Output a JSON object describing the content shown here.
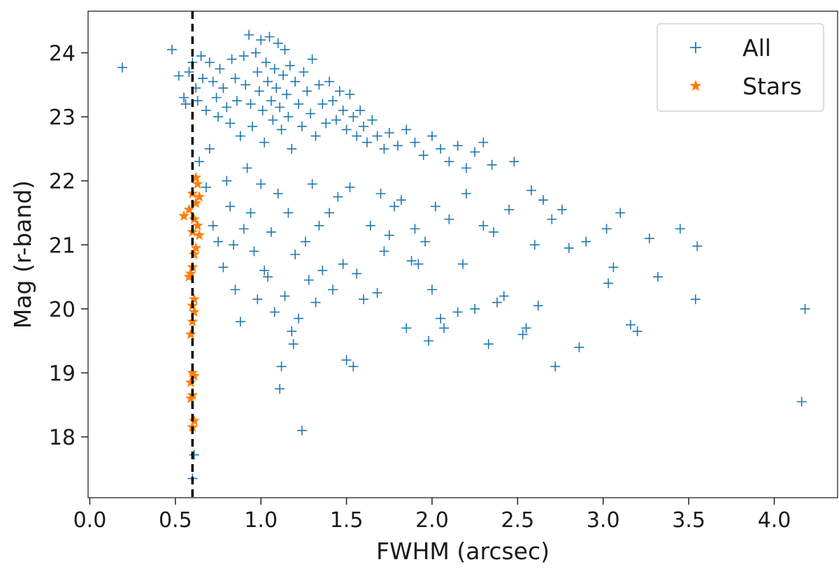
{
  "chart_data": {
    "type": "scatter",
    "title": "",
    "xlabel": "FWHM (arcsec)",
    "ylabel": "Mag (r-band)",
    "xlim": [
      -0.01,
      4.37
    ],
    "ylim": [
      17.05,
      24.65
    ],
    "x_ticks": [
      0.0,
      0.5,
      1.0,
      1.5,
      2.0,
      2.5,
      3.0,
      3.5,
      4.0
    ],
    "x_tick_labels": [
      "0.0",
      "0.5",
      "1.0",
      "1.5",
      "2.0",
      "2.5",
      "3.0",
      "3.5",
      "4.0"
    ],
    "y_ticks": [
      18,
      19,
      20,
      21,
      22,
      23,
      24
    ],
    "y_tick_labels": [
      "18",
      "19",
      "20",
      "21",
      "22",
      "23",
      "24"
    ],
    "grid": false,
    "legend_position": "top-right",
    "reference_line": {
      "x": 0.6,
      "style": "dashed",
      "color": "#000000"
    },
    "series": [
      {
        "name": "All",
        "marker": "plus",
        "color": "#1f77b4",
        "points": [
          [
            0.19,
            23.77
          ],
          [
            0.48,
            24.05
          ],
          [
            0.52,
            23.64
          ],
          [
            0.55,
            23.3
          ],
          [
            0.56,
            23.2
          ],
          [
            0.58,
            23.7
          ],
          [
            0.6,
            23.85
          ],
          [
            0.62,
            23.45
          ],
          [
            0.63,
            23.25
          ],
          [
            0.65,
            23.95
          ],
          [
            0.66,
            23.6
          ],
          [
            0.68,
            23.1
          ],
          [
            0.7,
            23.85
          ],
          [
            0.72,
            23.55
          ],
          [
            0.74,
            23.3
          ],
          [
            0.75,
            23.0
          ],
          [
            0.76,
            23.75
          ],
          [
            0.78,
            23.45
          ],
          [
            0.8,
            23.15
          ],
          [
            0.82,
            22.9
          ],
          [
            0.83,
            23.9
          ],
          [
            0.85,
            23.6
          ],
          [
            0.86,
            23.25
          ],
          [
            0.88,
            22.7
          ],
          [
            0.9,
            23.95
          ],
          [
            0.91,
            23.5
          ],
          [
            0.93,
            24.28
          ],
          [
            0.94,
            23.2
          ],
          [
            0.95,
            22.85
          ],
          [
            0.97,
            24.0
          ],
          [
            0.98,
            23.7
          ],
          [
            0.99,
            23.4
          ],
          [
            1.0,
            24.2
          ],
          [
            1.01,
            23.1
          ],
          [
            1.02,
            22.6
          ],
          [
            1.03,
            23.85
          ],
          [
            1.04,
            23.55
          ],
          [
            1.05,
            24.25
          ],
          [
            1.06,
            23.25
          ],
          [
            1.07,
            22.95
          ],
          [
            1.08,
            23.75
          ],
          [
            1.09,
            23.45
          ],
          [
            1.1,
            24.15
          ],
          [
            1.11,
            23.15
          ],
          [
            1.12,
            22.8
          ],
          [
            1.13,
            23.65
          ],
          [
            1.14,
            24.05
          ],
          [
            1.15,
            23.35
          ],
          [
            1.16,
            23.0
          ],
          [
            1.17,
            23.8
          ],
          [
            1.18,
            22.5
          ],
          [
            1.2,
            23.55
          ],
          [
            1.22,
            23.2
          ],
          [
            1.24,
            22.85
          ],
          [
            1.25,
            23.7
          ],
          [
            1.27,
            23.4
          ],
          [
            1.29,
            23.05
          ],
          [
            1.3,
            23.9
          ],
          [
            1.32,
            22.7
          ],
          [
            1.34,
            23.5
          ],
          [
            1.36,
            23.2
          ],
          [
            1.38,
            22.9
          ],
          [
            1.4,
            23.55
          ],
          [
            1.42,
            23.25
          ],
          [
            1.44,
            22.95
          ],
          [
            1.46,
            23.4
          ],
          [
            1.48,
            23.1
          ],
          [
            1.5,
            22.8
          ],
          [
            1.52,
            23.35
          ],
          [
            1.54,
            23.0
          ],
          [
            1.56,
            22.7
          ],
          [
            1.58,
            23.1
          ],
          [
            1.6,
            22.85
          ],
          [
            1.62,
            22.6
          ],
          [
            1.65,
            22.95
          ],
          [
            1.68,
            22.7
          ],
          [
            1.72,
            22.5
          ],
          [
            1.75,
            22.75
          ],
          [
            1.8,
            22.55
          ],
          [
            1.85,
            22.8
          ],
          [
            1.9,
            22.6
          ],
          [
            1.95,
            22.4
          ],
          [
            2.0,
            22.7
          ],
          [
            2.05,
            22.5
          ],
          [
            2.1,
            22.3
          ],
          [
            2.15,
            22.55
          ],
          [
            2.2,
            22.2
          ],
          [
            2.25,
            22.45
          ],
          [
            2.3,
            22.6
          ],
          [
            2.35,
            22.25
          ],
          [
            2.48,
            22.3
          ],
          [
            0.64,
            22.3
          ],
          [
            0.68,
            21.9
          ],
          [
            0.7,
            22.5
          ],
          [
            0.72,
            21.3
          ],
          [
            0.75,
            21.05
          ],
          [
            0.78,
            20.65
          ],
          [
            0.8,
            22.0
          ],
          [
            0.82,
            21.6
          ],
          [
            0.84,
            21.0
          ],
          [
            0.85,
            20.3
          ],
          [
            0.88,
            19.8
          ],
          [
            0.9,
            21.25
          ],
          [
            0.92,
            22.2
          ],
          [
            0.94,
            21.5
          ],
          [
            0.96,
            20.9
          ],
          [
            0.98,
            20.15
          ],
          [
            1.0,
            21.95
          ],
          [
            1.02,
            20.6
          ],
          [
            1.04,
            20.5
          ],
          [
            1.06,
            21.2
          ],
          [
            1.08,
            19.95
          ],
          [
            1.1,
            21.8
          ],
          [
            1.11,
            18.75
          ],
          [
            1.12,
            19.1
          ],
          [
            1.14,
            20.2
          ],
          [
            1.16,
            21.5
          ],
          [
            1.18,
            19.65
          ],
          [
            1.19,
            19.45
          ],
          [
            1.2,
            20.85
          ],
          [
            1.22,
            19.85
          ],
          [
            1.24,
            18.1
          ],
          [
            1.26,
            21.05
          ],
          [
            1.28,
            20.45
          ],
          [
            1.3,
            21.95
          ],
          [
            1.32,
            20.1
          ],
          [
            1.34,
            21.3
          ],
          [
            1.36,
            20.6
          ],
          [
            1.4,
            21.5
          ],
          [
            1.42,
            20.3
          ],
          [
            1.45,
            21.75
          ],
          [
            1.48,
            20.7
          ],
          [
            1.5,
            19.2
          ],
          [
            1.52,
            21.9
          ],
          [
            1.54,
            19.1
          ],
          [
            1.56,
            20.55
          ],
          [
            1.6,
            20.15
          ],
          [
            1.64,
            21.3
          ],
          [
            1.68,
            20.25
          ],
          [
            1.7,
            21.8
          ],
          [
            1.72,
            20.9
          ],
          [
            1.75,
            21.15
          ],
          [
            1.78,
            21.6
          ],
          [
            1.82,
            21.7
          ],
          [
            1.85,
            19.7
          ],
          [
            1.88,
            20.75
          ],
          [
            1.9,
            21.25
          ],
          [
            1.92,
            20.7
          ],
          [
            1.96,
            21.05
          ],
          [
            1.98,
            19.5
          ],
          [
            2.0,
            20.3
          ],
          [
            2.02,
            21.6
          ],
          [
            2.05,
            19.85
          ],
          [
            2.07,
            19.7
          ],
          [
            2.1,
            21.4
          ],
          [
            2.15,
            19.95
          ],
          [
            2.18,
            20.7
          ],
          [
            2.2,
            21.8
          ],
          [
            2.25,
            20.0
          ],
          [
            2.3,
            21.3
          ],
          [
            2.33,
            19.45
          ],
          [
            2.36,
            21.2
          ],
          [
            2.38,
            20.1
          ],
          [
            2.42,
            20.2
          ],
          [
            2.45,
            21.55
          ],
          [
            2.53,
            19.6
          ],
          [
            2.55,
            19.7
          ],
          [
            2.58,
            21.85
          ],
          [
            2.6,
            21.0
          ],
          [
            2.62,
            20.05
          ],
          [
            2.65,
            21.7
          ],
          [
            2.7,
            21.4
          ],
          [
            2.72,
            19.1
          ],
          [
            2.76,
            21.55
          ],
          [
            2.8,
            20.95
          ],
          [
            2.86,
            19.4
          ],
          [
            2.9,
            21.05
          ],
          [
            3.02,
            21.25
          ],
          [
            3.03,
            20.4
          ],
          [
            3.06,
            20.65
          ],
          [
            3.1,
            21.5
          ],
          [
            3.16,
            19.75
          ],
          [
            3.2,
            19.65
          ],
          [
            3.27,
            21.1
          ],
          [
            3.32,
            20.5
          ],
          [
            3.45,
            21.25
          ],
          [
            3.54,
            20.15
          ],
          [
            3.55,
            20.98
          ],
          [
            4.16,
            18.55
          ],
          [
            4.18,
            20.0
          ],
          [
            0.6,
            17.35
          ],
          [
            0.61,
            17.72
          ]
        ]
      },
      {
        "name": "Stars",
        "marker": "star",
        "color": "#ff7f0e",
        "points": [
          [
            0.62,
            22.05
          ],
          [
            0.63,
            21.95
          ],
          [
            0.6,
            21.8
          ],
          [
            0.64,
            21.75
          ],
          [
            0.62,
            21.65
          ],
          [
            0.58,
            21.55
          ],
          [
            0.55,
            21.45
          ],
          [
            0.61,
            21.4
          ],
          [
            0.63,
            21.3
          ],
          [
            0.6,
            21.2
          ],
          [
            0.64,
            21.15
          ],
          [
            0.62,
            20.95
          ],
          [
            0.61,
            20.85
          ],
          [
            0.6,
            20.65
          ],
          [
            0.59,
            20.55
          ],
          [
            0.58,
            20.5
          ],
          [
            0.61,
            20.15
          ],
          [
            0.6,
            20.05
          ],
          [
            0.61,
            19.95
          ],
          [
            0.6,
            19.8
          ],
          [
            0.59,
            19.6
          ],
          [
            0.6,
            19.0
          ],
          [
            0.61,
            18.95
          ],
          [
            0.59,
            18.85
          ],
          [
            0.6,
            18.65
          ],
          [
            0.59,
            18.6
          ],
          [
            0.61,
            18.25
          ],
          [
            0.6,
            18.15
          ]
        ]
      }
    ]
  }
}
